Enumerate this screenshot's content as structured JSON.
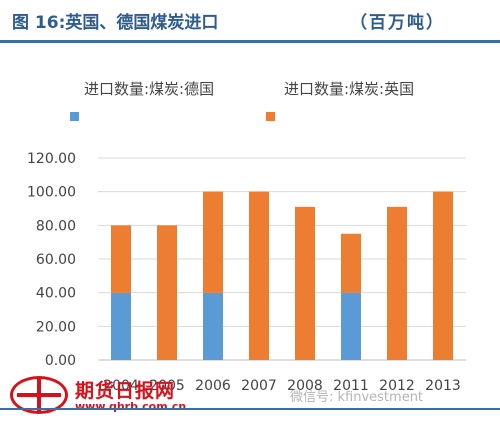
{
  "header": {
    "title": "图 16:英国、德国煤炭进口",
    "unit": "（百万吨）"
  },
  "chart_data": {
    "type": "bar",
    "stacked": true,
    "categories": [
      "2004",
      "2005",
      "2006",
      "2007",
      "2008",
      "2011",
      "2012",
      "2013"
    ],
    "series": [
      {
        "name": "进口数量:煤炭:德国",
        "color": "#5b9bd5",
        "values": [
          40,
          0,
          40,
          0,
          0,
          40,
          0,
          0
        ]
      },
      {
        "name": "进口数量:煤炭:英国",
        "color": "#ed7d31",
        "values": [
          40,
          80,
          60,
          100,
          91,
          35,
          91,
          100
        ]
      }
    ],
    "y_ticks": [
      "0.00",
      "20.00",
      "40.00",
      "60.00",
      "80.00",
      "100.00",
      "120.00"
    ],
    "ylim": [
      0,
      120
    ],
    "grid": true,
    "legend_position": "top"
  },
  "logo": {
    "name": "期货日报网",
    "url": "www.qhrb.com.cn"
  },
  "watermark": "微信号: kfinvestment"
}
